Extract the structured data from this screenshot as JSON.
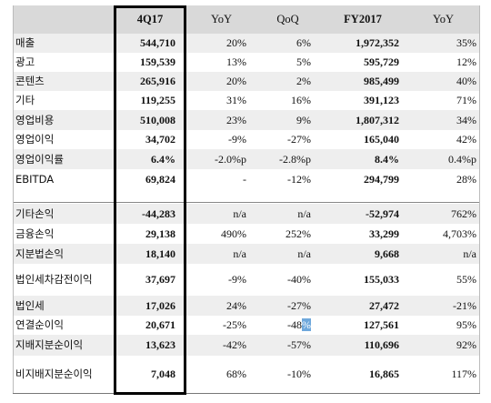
{
  "header": {
    "label": "",
    "q": "4Q17",
    "yoy": "YoY",
    "qoq": "QoQ",
    "fy": "FY2017",
    "fy_yoy": "YoY"
  },
  "rows": [
    {
      "label": "매출",
      "q": "544,710",
      "yoy": "20%",
      "qoq": "6%",
      "fy": "1,972,352",
      "fy_yoy": "35%"
    },
    {
      "label": "광고",
      "q": "159,539",
      "yoy": "13%",
      "qoq": "5%",
      "fy": "595,729",
      "fy_yoy": "12%"
    },
    {
      "label": "콘텐츠",
      "q": "265,916",
      "yoy": "20%",
      "qoq": "2%",
      "fy": "985,499",
      "fy_yoy": "40%"
    },
    {
      "label": "기타",
      "q": "119,255",
      "yoy": "31%",
      "qoq": "16%",
      "fy": "391,123",
      "fy_yoy": "71%"
    },
    {
      "label": "영업비용",
      "q": "510,008",
      "yoy": "23%",
      "qoq": "9%",
      "fy": "1,807,312",
      "fy_yoy": "34%"
    },
    {
      "label": "영업이익",
      "q": "34,702",
      "yoy": "-9%",
      "qoq": "-27%",
      "fy": "165,040",
      "fy_yoy": "42%"
    },
    {
      "label": "영업이익률",
      "q": "6.4%",
      "yoy": "-2.0%p",
      "qoq": "-2.8%p",
      "fy": "8.4%",
      "fy_yoy": "0.4%p"
    },
    {
      "label": "EBITDA",
      "q": "69,824",
      "yoy": "-",
      "qoq": "-12%",
      "fy": "294,799",
      "fy_yoy": "28%"
    },
    {
      "label": "기타손익",
      "q": "-44,283",
      "yoy": "n/a",
      "qoq": "n/a",
      "fy": "-52,974",
      "fy_yoy": "762%"
    },
    {
      "label": "금융손익",
      "q": "29,138",
      "yoy": "490%",
      "qoq": "252%",
      "fy": "33,299",
      "fy_yoy": "4,703%"
    },
    {
      "label": "지분법손익",
      "q": "18,140",
      "yoy": "n/a",
      "qoq": "n/a",
      "fy": "9,668",
      "fy_yoy": "n/a"
    },
    {
      "label": "법인세차감전이익",
      "q": "37,697",
      "yoy": "-9%",
      "qoq": "-40%",
      "fy": "155,033",
      "fy_yoy": "55%"
    },
    {
      "label": "법인세",
      "q": "17,026",
      "yoy": "24%",
      "qoq": "-27%",
      "fy": "27,472",
      "fy_yoy": "-21%"
    },
    {
      "label": "연결순이익",
      "q": "20,671",
      "yoy": "-25%",
      "qoq_a": "-48",
      "qoq_b": "%",
      "fy": "127,561",
      "fy_yoy": "95%"
    },
    {
      "label": "지배지분순이익",
      "q": "13,623",
      "yoy": "-42%",
      "qoq": "-57%",
      "fy": "110,696",
      "fy_yoy": "92%"
    },
    {
      "label": "비지배지분순이익",
      "q": "7,048",
      "yoy": "68%",
      "qoq": "-10%",
      "fy": "16,865",
      "fy_yoy": "117%"
    }
  ]
}
